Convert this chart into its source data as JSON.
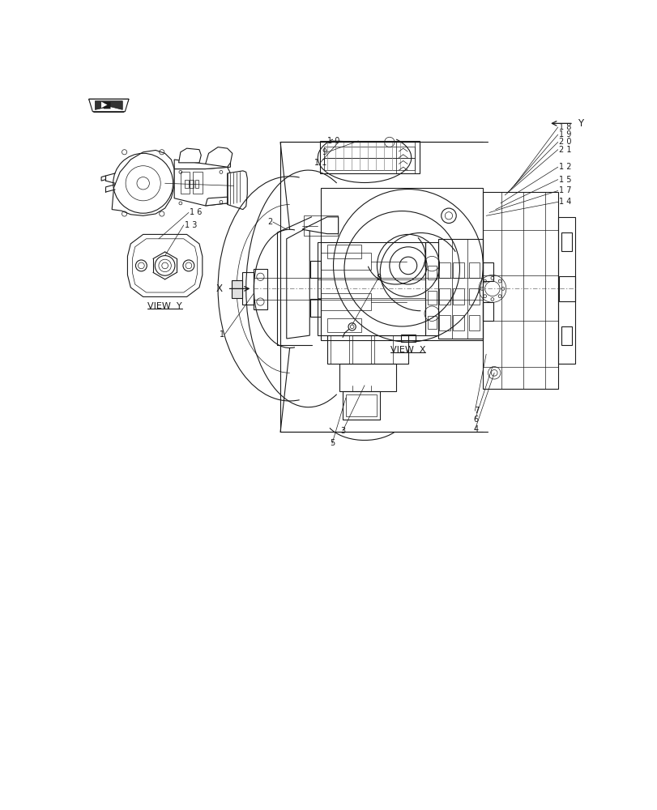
{
  "bg_color": "#ffffff",
  "line_color": "#1a1a1a",
  "view_y_label": "VIEW  Y",
  "view_x_label": "VIEW  X",
  "part_labels_top_right": [
    [
      762,
      952,
      "1 8"
    ],
    [
      762,
      940,
      "1 9"
    ],
    [
      762,
      928,
      "2 0"
    ],
    [
      762,
      916,
      "2 1"
    ],
    [
      762,
      888,
      "1 2"
    ],
    [
      762,
      868,
      "1 5"
    ],
    [
      762,
      850,
      "1 7"
    ],
    [
      762,
      832,
      "1 4"
    ]
  ],
  "part_labels_top_left": [
    [
      390,
      930,
      "1 0"
    ],
    [
      382,
      912,
      "9"
    ],
    [
      370,
      895,
      "1 1"
    ],
    [
      295,
      800,
      "2"
    ]
  ],
  "part_labels_bottom": [
    [
      412,
      465,
      "3"
    ],
    [
      395,
      445,
      "5"
    ],
    [
      625,
      467,
      "4"
    ],
    [
      625,
      483,
      "6"
    ],
    [
      625,
      497,
      "7"
    ]
  ],
  "label_1": [
    218,
    620,
    "1"
  ],
  "label_8": [
    468,
    710,
    "8"
  ],
  "label_13": [
    162,
    795,
    "1 3"
  ],
  "label_16": [
    170,
    815,
    "1 6"
  ]
}
